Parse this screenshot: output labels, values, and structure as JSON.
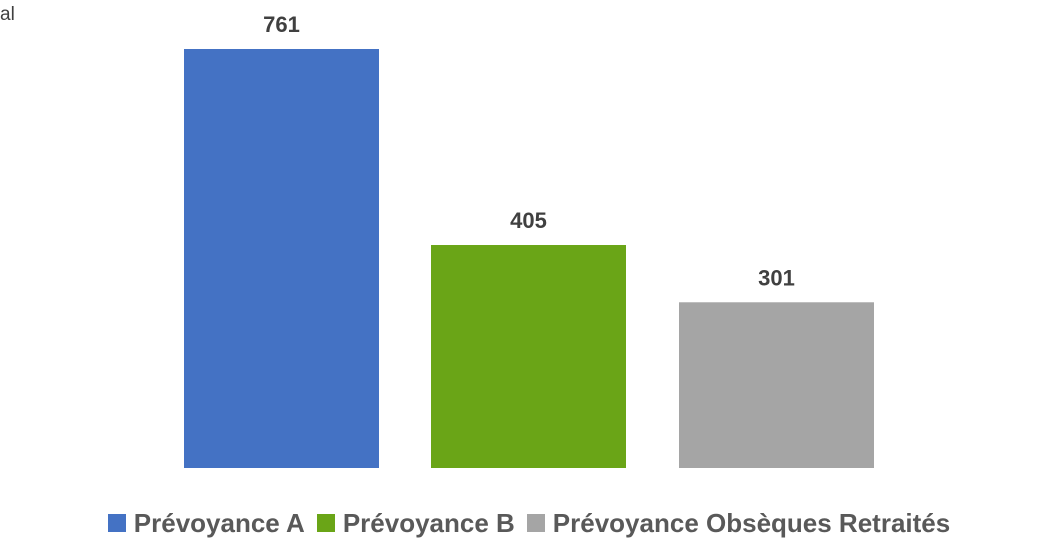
{
  "corner_text": "al",
  "chart_data": {
    "type": "bar",
    "title": "",
    "xlabel": "",
    "ylabel": "",
    "ylim": [
      0,
      761
    ],
    "grid": false,
    "legend_position": "bottom",
    "series": [
      {
        "name": "Prévoyance A",
        "value": 761,
        "label": "761",
        "color": "#4472c4"
      },
      {
        "name": "Prévoyance B",
        "value": 405,
        "label": "405",
        "color": "#6aa517"
      },
      {
        "name": "Prévoyance Obsèques Retraités",
        "value": 301,
        "label": "301",
        "color": "#a5a5a5"
      }
    ]
  }
}
